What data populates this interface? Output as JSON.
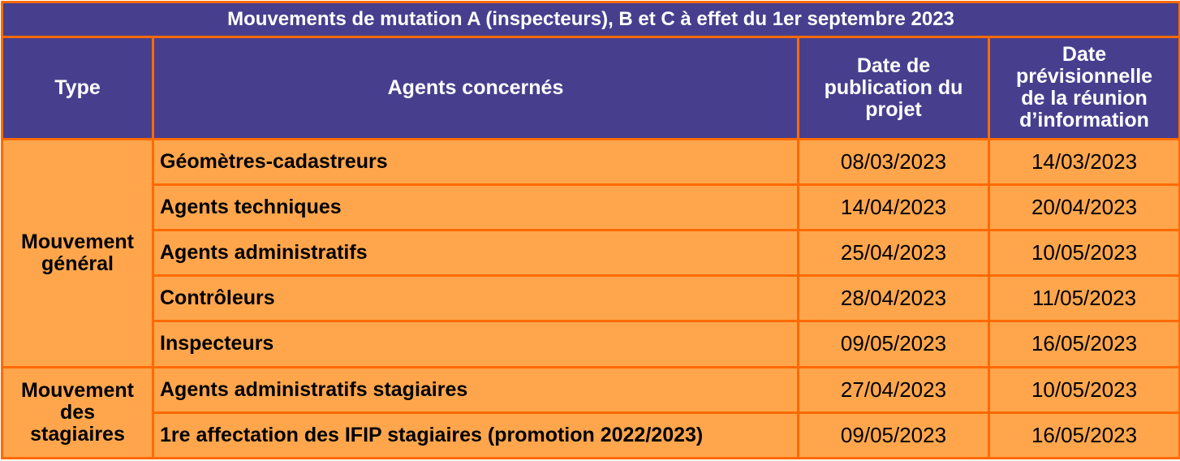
{
  "title": "Mouvements de mutation A (inspecteurs), B et C à effet du 1er septembre 2023",
  "headers": {
    "type": "Type",
    "agents": "Agents concernés",
    "publication_line1": "Date de",
    "publication_line2": "publication du",
    "publication_line3": "projet",
    "meeting_line1": "Date",
    "meeting_line2": "prévisionnelle",
    "meeting_line3": "de la réunion",
    "meeting_line4": "d’information"
  },
  "groups": [
    {
      "type_line1": "Mouvement",
      "type_line2": "général",
      "rows": [
        {
          "agents": "Géomètres-cadastreurs",
          "publication": "08/03/2023",
          "meeting": "14/03/2023"
        },
        {
          "agents": "Agents techniques",
          "publication": "14/04/2023",
          "meeting": "20/04/2023"
        },
        {
          "agents": "Agents administratifs",
          "publication": "25/04/2023",
          "meeting": "10/05/2023"
        },
        {
          "agents": "Contrôleurs",
          "publication": "28/04/2023",
          "meeting": "11/05/2023"
        },
        {
          "agents": "Inspecteurs",
          "publication": "09/05/2023",
          "meeting": "16/05/2023"
        }
      ]
    },
    {
      "type_line1": "Mouvement",
      "type_line2": "des",
      "type_line3": "stagiaires",
      "rows": [
        {
          "agents": "Agents administratifs stagiaires",
          "publication": "27/04/2023",
          "meeting": "10/05/2023"
        },
        {
          "agents": "1re affectation des IFIP stagiaires (promotion 2022/2023)",
          "publication": "09/05/2023",
          "meeting": "16/05/2023"
        }
      ]
    }
  ],
  "colors": {
    "header_bg": "#473f8e",
    "body_bg": "#ffa64d",
    "border": "#ff6a00"
  }
}
